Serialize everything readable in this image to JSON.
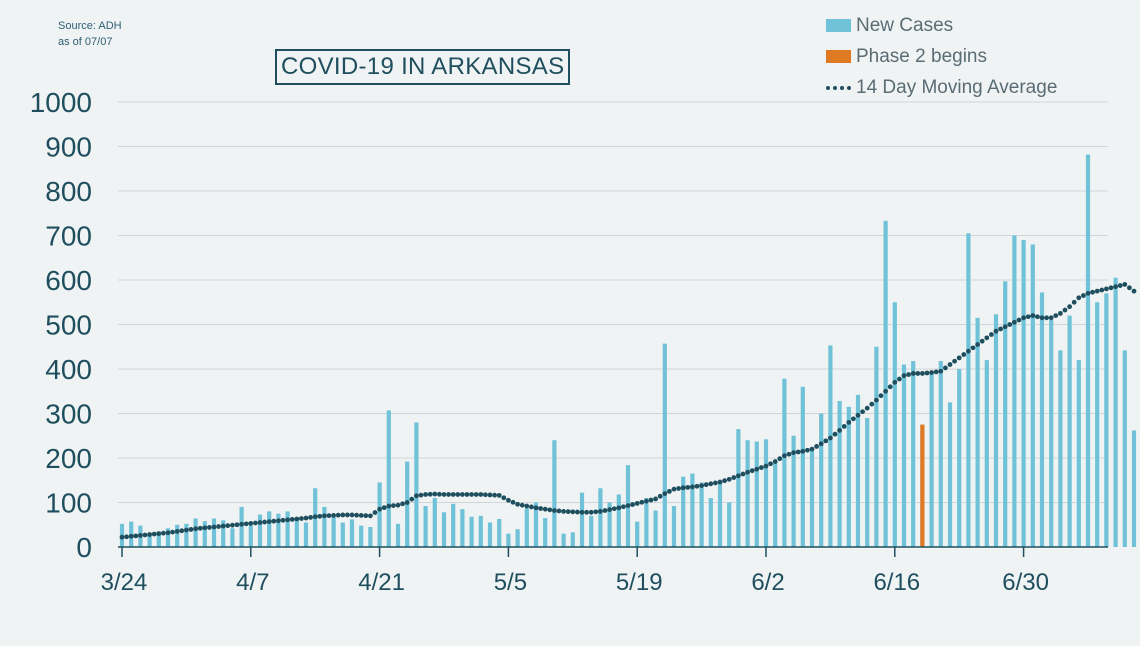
{
  "source": {
    "line1": "Source: ADH",
    "line2": "as of 07/07"
  },
  "title": "COVID-19 IN ARKANSAS",
  "legend": {
    "new_cases": "New Cases",
    "phase2": "Phase 2 begins",
    "moving_avg": "14 Day Moving Average"
  },
  "colors": {
    "background": "#f0f3f4",
    "bar": "#6fc2d8",
    "phase2_bar": "#e07a22",
    "moving_avg": "#1f4f5e",
    "axis_text": "#1f4f5e",
    "grid": "#cfd5d8"
  },
  "chart_data": {
    "type": "bar",
    "title": "COVID-19 IN ARKANSAS",
    "xlabel": "",
    "ylabel": "",
    "ylim": [
      0,
      1000
    ],
    "yticks": [
      0,
      100,
      200,
      300,
      400,
      500,
      600,
      700,
      800,
      900,
      1000
    ],
    "grid": true,
    "legend_position": "top-right",
    "x_start_date": "3/24",
    "x_tick_labels": [
      {
        "label": "3/24",
        "day_index": 0
      },
      {
        "label": "4/7",
        "day_index": 14
      },
      {
        "label": "4/21",
        "day_index": 28
      },
      {
        "label": "5/5",
        "day_index": 42
      },
      {
        "label": "5/19",
        "day_index": 56
      },
      {
        "label": "6/2",
        "day_index": 70
      },
      {
        "label": "6/16",
        "day_index": 84
      },
      {
        "label": "6/30",
        "day_index": 98
      }
    ],
    "series": [
      {
        "name": "New Cases",
        "values": [
          52,
          57,
          48,
          32,
          35,
          42,
          50,
          52,
          64,
          58,
          64,
          60,
          42,
          90,
          48,
          73,
          80,
          75,
          80,
          60,
          55,
          132,
          90,
          68,
          55,
          62,
          48,
          45,
          145,
          307,
          52,
          192,
          280,
          92,
          110,
          78,
          97,
          85,
          68,
          70,
          55,
          63,
          30,
          40,
          87,
          100,
          65,
          240,
          30,
          33,
          122,
          70,
          132,
          100,
          118,
          184,
          57,
          110,
          82,
          457,
          92,
          158,
          165,
          145,
          110,
          145,
          100,
          265,
          240,
          237,
          242,
          195,
          378,
          250,
          360,
          220,
          300,
          453,
          328,
          315,
          342,
          290,
          450,
          733,
          550,
          410,
          418,
          275,
          395,
          418,
          325,
          400,
          705,
          515,
          420,
          523,
          597,
          700,
          690,
          680,
          572,
          510,
          442,
          520,
          420,
          882,
          550,
          570,
          605,
          442,
          262
        ]
      },
      {
        "name": "Phase 2 begins",
        "points": [
          {
            "day_index": 87,
            "value": 275
          }
        ]
      },
      {
        "name": "14 Day Moving Average",
        "values": [
          22,
          24,
          26,
          28,
          30,
          32,
          35,
          38,
          41,
          43,
          45,
          47,
          49,
          51,
          53,
          55,
          57,
          59,
          61,
          63,
          65,
          68,
          70,
          71,
          72,
          72,
          71,
          70,
          85,
          92,
          94,
          100,
          115,
          118,
          119,
          118,
          118,
          118,
          118,
          118,
          117,
          116,
          105,
          96,
          92,
          88,
          85,
          82,
          80,
          79,
          78,
          78,
          80,
          84,
          88,
          93,
          98,
          103,
          108,
          120,
          130,
          133,
          135,
          138,
          142,
          146,
          152,
          160,
          168,
          175,
          182,
          192,
          205,
          212,
          215,
          220,
          232,
          245,
          262,
          280,
          296,
          312,
          330,
          350,
          370,
          385,
          390,
          390,
          392,
          395,
          410,
          425,
          440,
          455,
          470,
          485,
          495,
          505,
          515,
          520,
          515,
          515,
          525,
          540,
          560,
          570,
          575,
          580,
          585,
          590,
          575
        ]
      }
    ]
  }
}
